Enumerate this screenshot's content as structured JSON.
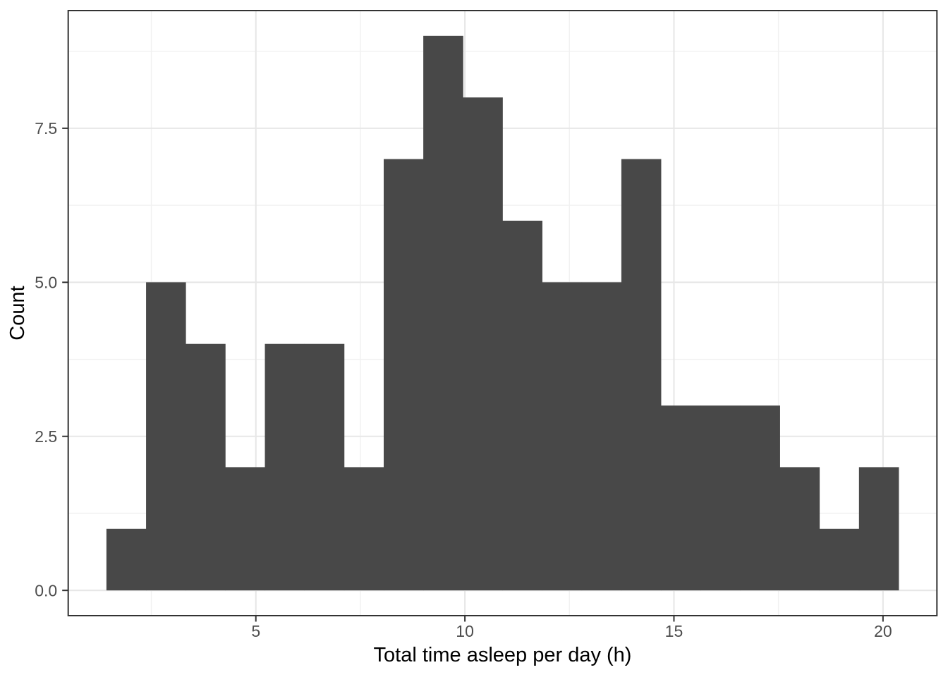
{
  "chart_data": {
    "type": "bar",
    "subtype": "histogram",
    "title": "",
    "xlabel": "Total time asleep per day (h)",
    "ylabel": "Count",
    "bin_edges": [
      1.426,
      2.374,
      3.321,
      4.268,
      5.216,
      6.163,
      7.111,
      8.058,
      9.005,
      9.953,
      10.9,
      11.847,
      12.795,
      13.742,
      14.689,
      15.637,
      16.584,
      17.532,
      18.479,
      19.426,
      20.374
    ],
    "counts": [
      1,
      5,
      4,
      2,
      4,
      4,
      2,
      7,
      9,
      8,
      6,
      5,
      5,
      7,
      3,
      3,
      3,
      2,
      1,
      2
    ],
    "total_count": 83,
    "x_ticks": [
      5,
      10,
      15,
      20
    ],
    "x_tick_labels": [
      "5",
      "10",
      "15",
      "20"
    ],
    "y_ticks": [
      0,
      2.5,
      5,
      7.5
    ],
    "y_tick_labels": [
      "0.0",
      "2.5",
      "5.0",
      "7.5"
    ],
    "x_minor_gridlines": [
      2.5,
      7.5,
      12.5,
      17.5
    ],
    "y_minor_gridlines": [
      1.25,
      3.75,
      6.25,
      8.75
    ],
    "xlim": [
      0.512,
      21.29
    ],
    "ylim": [
      -0.41,
      9.41
    ],
    "grid": "major and minor, light gray on white panel",
    "legend_position": "none",
    "colors": {
      "bar_fill": "#484848",
      "panel_border": "#333333",
      "tick_mark": "#333333",
      "grid_major": "#e7e7e7",
      "grid_minor": "#f1f1f1",
      "tick_label": "#4d4d4d",
      "axis_title": "#000000",
      "background": "#ffffff"
    }
  }
}
